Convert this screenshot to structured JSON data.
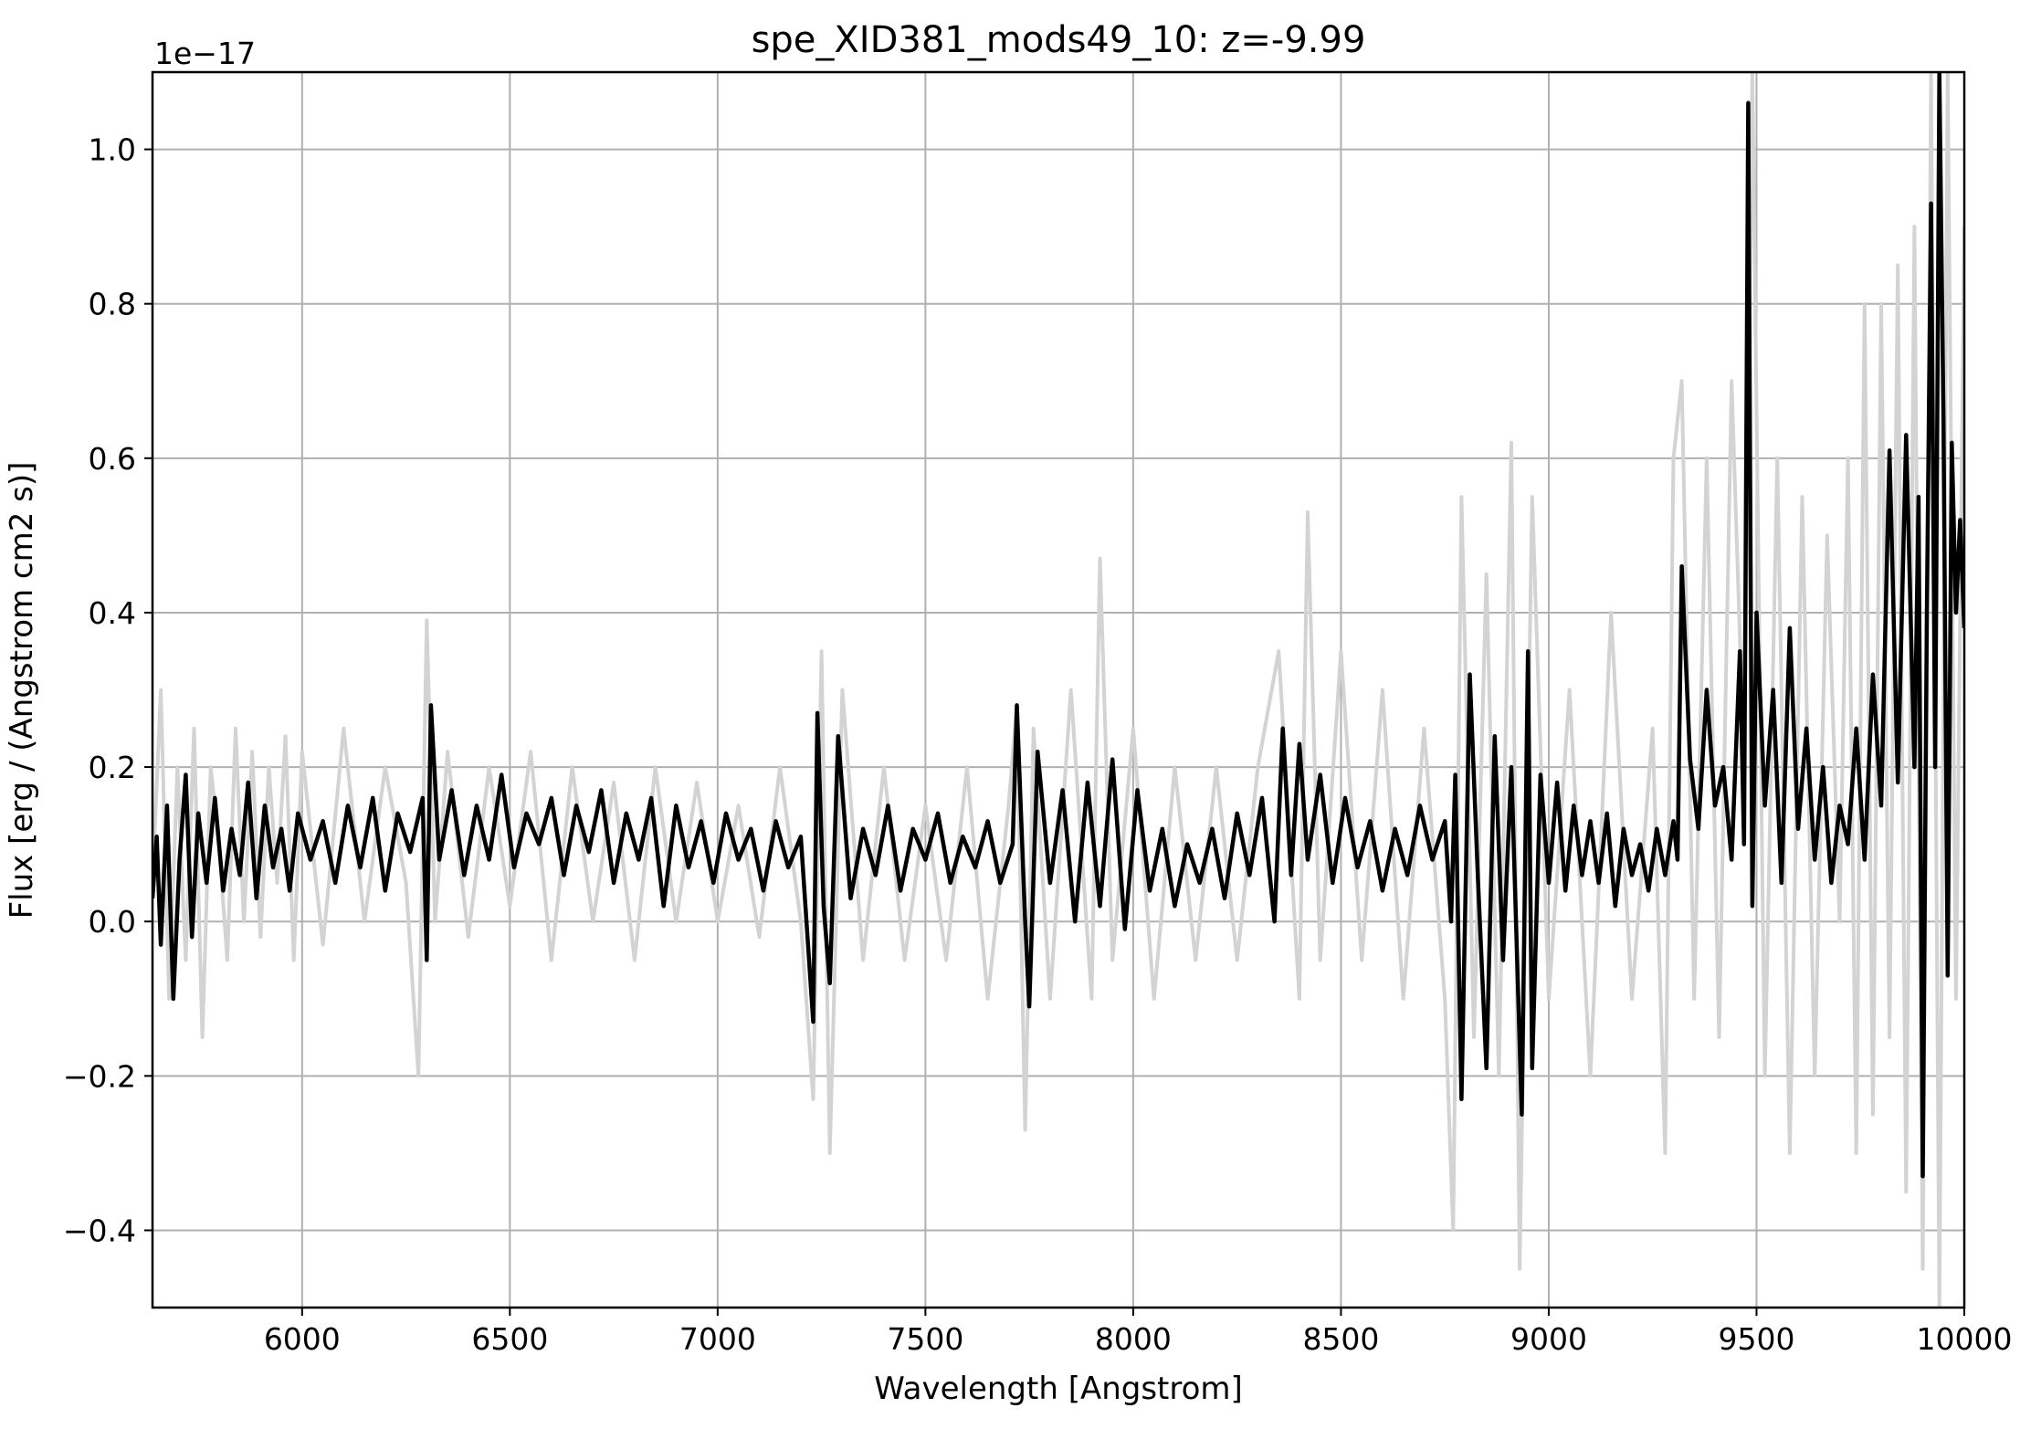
{
  "chart_data": {
    "type": "line",
    "title": "spe_XID381_mods49_10: z=-9.99",
    "xlabel": "Wavelength [Angstrom]",
    "ylabel": "Flux [erg / (Angstrom cm2 s)]",
    "y_offset_label": "1e−17",
    "xlim": [
      5640,
      10000
    ],
    "ylim": [
      -0.5,
      1.1
    ],
    "grid": true,
    "x_ticks": [
      6000,
      6500,
      7000,
      7500,
      8000,
      8500,
      9000,
      9500,
      10000
    ],
    "x_tick_labels": [
      "6000",
      "6500",
      "7000",
      "7500",
      "8000",
      "8500",
      "9000",
      "9500",
      "10000"
    ],
    "y_ticks": [
      -0.4,
      -0.2,
      0.0,
      0.2,
      0.4,
      0.6,
      0.8,
      1.0
    ],
    "y_tick_labels": [
      "−0.4",
      "−0.2",
      "0.0",
      "0.2",
      "0.4",
      "0.6",
      "0.8",
      "1.0"
    ],
    "series": [
      {
        "color": "#d3d3d3",
        "x": [
          5640,
          5660,
          5680,
          5700,
          5720,
          5740,
          5760,
          5780,
          5800,
          5820,
          5840,
          5860,
          5880,
          5900,
          5920,
          5940,
          5960,
          5980,
          6000,
          6050,
          6100,
          6150,
          6200,
          6250,
          6280,
          6300,
          6320,
          6350,
          6400,
          6450,
          6500,
          6550,
          6600,
          6650,
          6700,
          6750,
          6800,
          6850,
          6900,
          6950,
          7000,
          7050,
          7100,
          7150,
          7200,
          7230,
          7250,
          7270,
          7300,
          7350,
          7400,
          7450,
          7500,
          7550,
          7600,
          7650,
          7700,
          7720,
          7740,
          7760,
          7800,
          7850,
          7900,
          7920,
          7950,
          8000,
          8050,
          8100,
          8150,
          8200,
          8250,
          8300,
          8350,
          8400,
          8420,
          8450,
          8500,
          8550,
          8600,
          8650,
          8700,
          8750,
          8770,
          8790,
          8820,
          8850,
          8880,
          8910,
          8930,
          8960,
          9000,
          9050,
          9100,
          9150,
          9200,
          9250,
          9280,
          9300,
          9320,
          9350,
          9380,
          9410,
          9440,
          9470,
          9490,
          9520,
          9550,
          9580,
          9610,
          9640,
          9670,
          9700,
          9720,
          9740,
          9760,
          9780,
          9800,
          9820,
          9840,
          9860,
          9880,
          9900,
          9920,
          9940,
          9960,
          9980,
          10000
        ],
        "y": [
          0.05,
          0.3,
          -0.1,
          0.2,
          -0.05,
          0.25,
          -0.15,
          0.2,
          0.1,
          -0.05,
          0.25,
          0.0,
          0.22,
          -0.02,
          0.2,
          0.05,
          0.24,
          -0.05,
          0.22,
          -0.03,
          0.25,
          0.0,
          0.2,
          0.05,
          -0.2,
          0.39,
          0.0,
          0.22,
          -0.02,
          0.2,
          0.02,
          0.22,
          -0.05,
          0.2,
          0.0,
          0.18,
          -0.05,
          0.2,
          0.0,
          0.18,
          0.0,
          0.15,
          -0.02,
          0.2,
          0.0,
          -0.23,
          0.35,
          -0.3,
          0.3,
          -0.05,
          0.2,
          -0.05,
          0.15,
          -0.05,
          0.2,
          -0.1,
          0.15,
          0.28,
          -0.27,
          0.25,
          -0.1,
          0.3,
          -0.1,
          0.47,
          -0.05,
          0.25,
          -0.1,
          0.2,
          -0.05,
          0.2,
          -0.05,
          0.2,
          0.35,
          -0.1,
          0.53,
          -0.05,
          0.35,
          -0.05,
          0.3,
          -0.1,
          0.25,
          -0.1,
          -0.4,
          0.55,
          -0.15,
          0.45,
          -0.2,
          0.62,
          -0.45,
          0.55,
          -0.1,
          0.3,
          -0.2,
          0.4,
          -0.1,
          0.25,
          -0.3,
          0.6,
          0.7,
          -0.1,
          0.6,
          -0.15,
          0.7,
          0.2,
          1.1,
          -0.2,
          0.6,
          -0.3,
          0.55,
          -0.2,
          0.5,
          0.0,
          0.6,
          -0.3,
          0.8,
          -0.25,
          0.8,
          -0.15,
          0.85,
          -0.35,
          0.9,
          -0.45,
          1.1,
          -0.5,
          1.1,
          -0.1,
          0.9
        ]
      },
      {
        "color": "#000000",
        "x": [
          5640,
          5650,
          5660,
          5675,
          5690,
          5705,
          5720,
          5735,
          5750,
          5770,
          5790,
          5810,
          5830,
          5850,
          5870,
          5890,
          5910,
          5930,
          5950,
          5970,
          5990,
          6020,
          6050,
          6080,
          6110,
          6140,
          6170,
          6200,
          6230,
          6260,
          6290,
          6300,
          6310,
          6330,
          6360,
          6390,
          6420,
          6450,
          6480,
          6510,
          6540,
          6570,
          6600,
          6630,
          6660,
          6690,
          6720,
          6750,
          6780,
          6810,
          6840,
          6870,
          6900,
          6930,
          6960,
          6990,
          7020,
          7050,
          7080,
          7110,
          7140,
          7170,
          7200,
          7230,
          7240,
          7255,
          7270,
          7290,
          7320,
          7350,
          7380,
          7410,
          7440,
          7470,
          7500,
          7530,
          7560,
          7590,
          7620,
          7650,
          7680,
          7710,
          7720,
          7740,
          7750,
          7770,
          7800,
          7830,
          7860,
          7890,
          7920,
          7950,
          7980,
          8010,
          8040,
          8070,
          8100,
          8130,
          8160,
          8190,
          8220,
          8250,
          8280,
          8310,
          8340,
          8360,
          8380,
          8400,
          8420,
          8450,
          8480,
          8510,
          8540,
          8570,
          8600,
          8630,
          8660,
          8690,
          8720,
          8750,
          8765,
          8775,
          8790,
          8810,
          8830,
          8850,
          8870,
          8890,
          8910,
          8920,
          8935,
          8950,
          8960,
          8980,
          9000,
          9020,
          9040,
          9060,
          9080,
          9100,
          9120,
          9140,
          9160,
          9180,
          9200,
          9220,
          9240,
          9260,
          9280,
          9300,
          9310,
          9320,
          9340,
          9360,
          9380,
          9400,
          9420,
          9440,
          9460,
          9470,
          9480,
          9490,
          9500,
          9520,
          9540,
          9560,
          9580,
          9600,
          9620,
          9640,
          9660,
          9680,
          9700,
          9720,
          9740,
          9760,
          9780,
          9800,
          9820,
          9840,
          9860,
          9880,
          9890,
          9900,
          9910,
          9920,
          9930,
          9940,
          9950,
          9960,
          9970,
          9980,
          9990,
          10000
        ],
        "y": [
          0.03,
          0.11,
          -0.03,
          0.15,
          -0.1,
          0.08,
          0.19,
          -0.02,
          0.14,
          0.05,
          0.16,
          0.04,
          0.12,
          0.06,
          0.18,
          0.03,
          0.15,
          0.07,
          0.12,
          0.04,
          0.14,
          0.08,
          0.13,
          0.05,
          0.15,
          0.07,
          0.16,
          0.04,
          0.14,
          0.09,
          0.16,
          -0.05,
          0.28,
          0.08,
          0.17,
          0.06,
          0.15,
          0.08,
          0.19,
          0.07,
          0.14,
          0.1,
          0.16,
          0.06,
          0.15,
          0.09,
          0.17,
          0.05,
          0.14,
          0.08,
          0.16,
          0.02,
          0.15,
          0.07,
          0.13,
          0.05,
          0.14,
          0.08,
          0.12,
          0.04,
          0.13,
          0.07,
          0.11,
          -0.13,
          0.27,
          0.02,
          -0.08,
          0.24,
          0.03,
          0.12,
          0.06,
          0.15,
          0.04,
          0.12,
          0.08,
          0.14,
          0.05,
          0.11,
          0.07,
          0.13,
          0.05,
          0.1,
          0.28,
          0.0,
          -0.11,
          0.22,
          0.05,
          0.17,
          0.0,
          0.18,
          0.02,
          0.21,
          -0.01,
          0.17,
          0.04,
          0.12,
          0.02,
          0.1,
          0.05,
          0.12,
          0.03,
          0.14,
          0.06,
          0.16,
          0.0,
          0.25,
          0.06,
          0.23,
          0.08,
          0.19,
          0.05,
          0.16,
          0.07,
          0.13,
          0.04,
          0.12,
          0.06,
          0.15,
          0.08,
          0.13,
          0.0,
          0.19,
          -0.23,
          0.32,
          0.05,
          -0.19,
          0.24,
          -0.05,
          0.2,
          0.02,
          -0.25,
          0.35,
          -0.19,
          0.19,
          0.05,
          0.18,
          0.04,
          0.15,
          0.06,
          0.13,
          0.05,
          0.14,
          0.02,
          0.12,
          0.06,
          0.1,
          0.04,
          0.12,
          0.06,
          0.13,
          0.08,
          0.46,
          0.21,
          0.12,
          0.3,
          0.15,
          0.2,
          0.08,
          0.35,
          0.1,
          1.06,
          0.02,
          0.4,
          0.15,
          0.3,
          0.05,
          0.38,
          0.12,
          0.25,
          0.08,
          0.2,
          0.05,
          0.15,
          0.1,
          0.25,
          0.08,
          0.32,
          0.15,
          0.61,
          0.18,
          0.63,
          0.2,
          0.55,
          -0.33,
          0.4,
          0.93,
          0.2,
          1.1,
          0.65,
          -0.07,
          0.62,
          0.4,
          0.52,
          0.38
        ]
      }
    ]
  }
}
